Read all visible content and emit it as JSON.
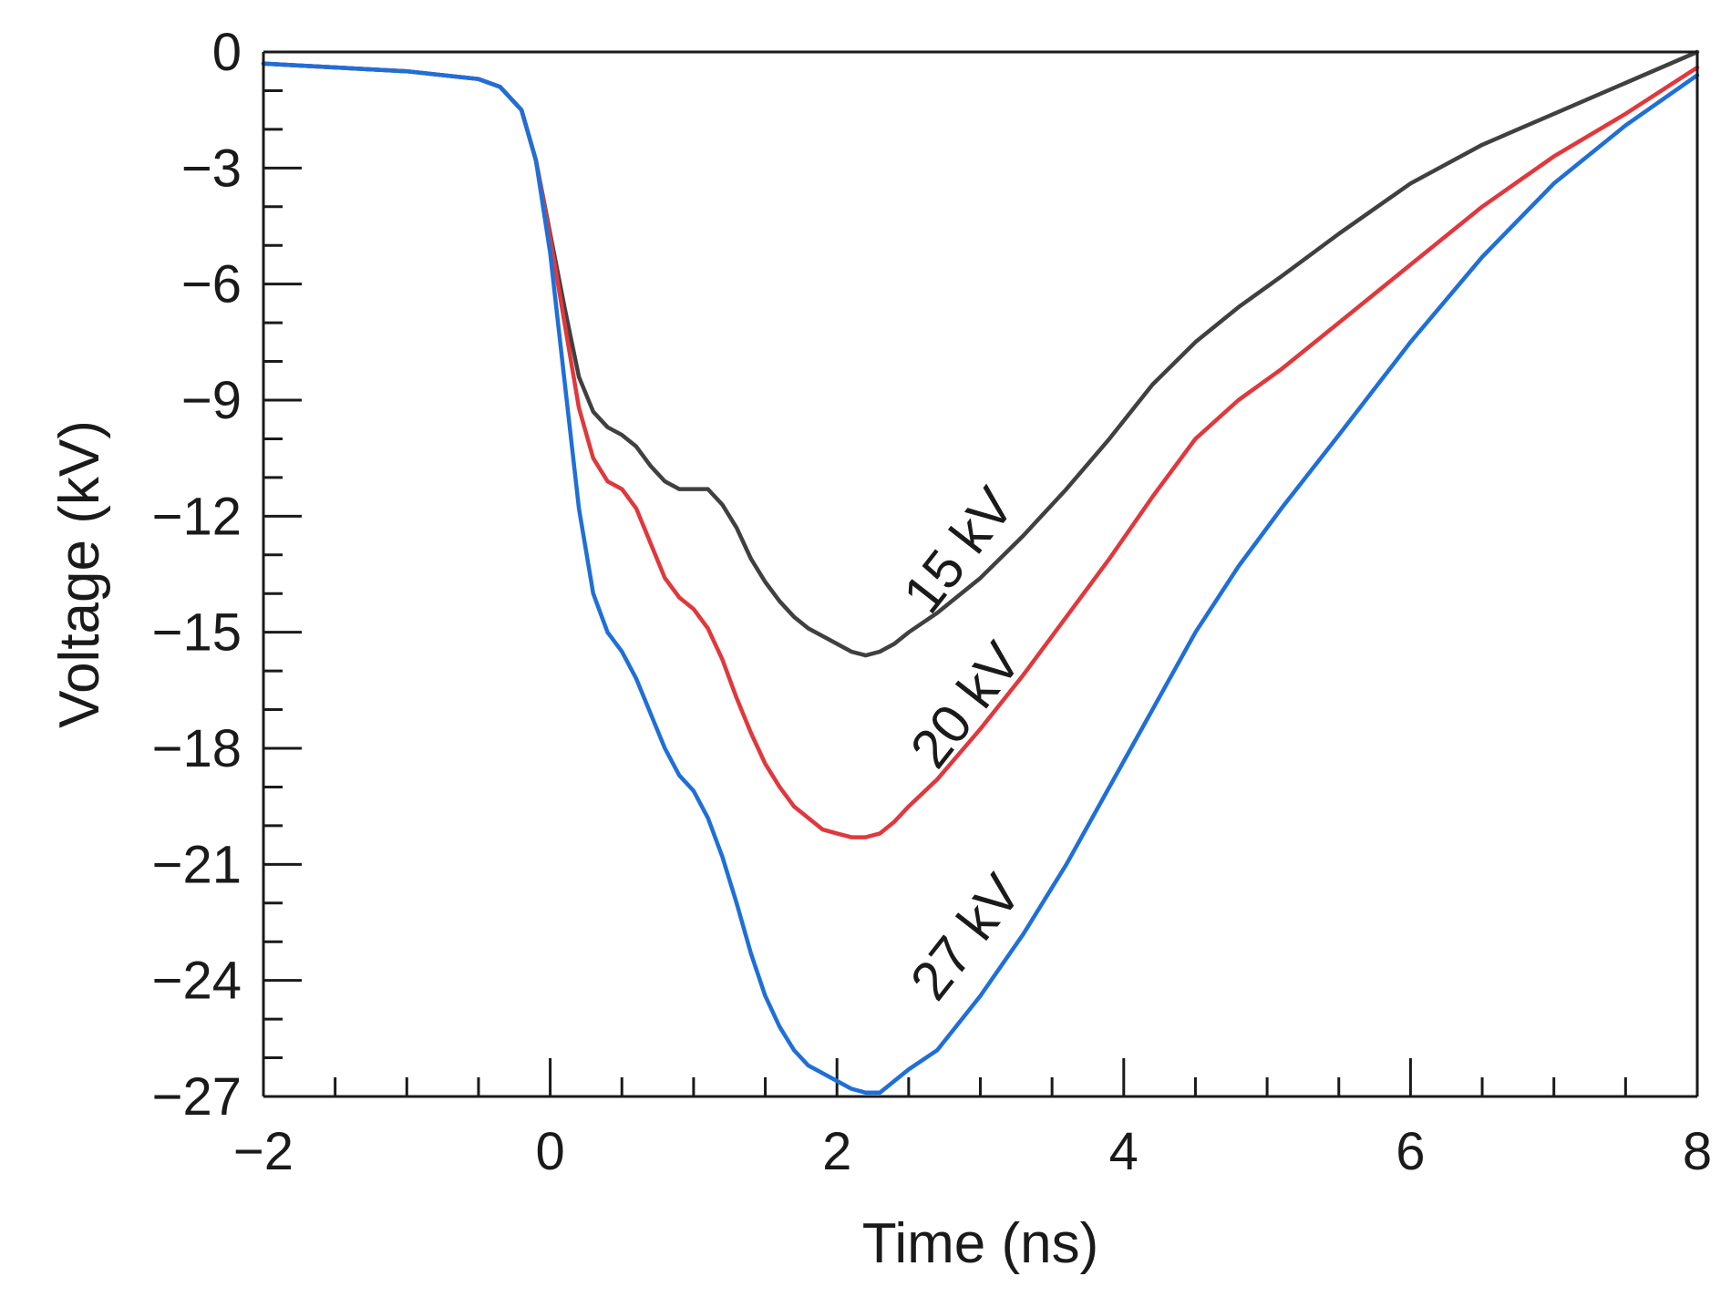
{
  "chart_data": {
    "type": "line",
    "title": "",
    "xlabel": "Time (ns)",
    "ylabel": "Voltage (kV)",
    "xlim": [
      -2,
      8
    ],
    "ylim": [
      -27,
      0
    ],
    "x_major_ticks": [
      -2,
      0,
      2,
      4,
      6,
      8
    ],
    "x_tick_labels": [
      "−2",
      "0",
      "2",
      "4",
      "6",
      "8"
    ],
    "x_minor_step": 0.5,
    "y_major_ticks": [
      0,
      -3,
      -6,
      -9,
      -12,
      -15,
      -18,
      -21,
      -24,
      -27
    ],
    "y_tick_labels": [
      "0",
      "−3",
      "−6",
      "−9",
      "−12",
      "−15",
      "−18",
      "−21",
      "−24",
      "−27"
    ],
    "y_minor_step": 1,
    "grid": false,
    "series": [
      {
        "name": "15 kV",
        "label": "15 kV",
        "color": "#404040",
        "label_anchor": [
          2.65,
          -14.6
        ],
        "x": [
          -2.0,
          -1.5,
          -1.0,
          -0.5,
          -0.35,
          -0.2,
          -0.1,
          0.0,
          0.1,
          0.2,
          0.3,
          0.4,
          0.5,
          0.6,
          0.7,
          0.8,
          0.9,
          1.0,
          1.1,
          1.2,
          1.3,
          1.4,
          1.5,
          1.6,
          1.7,
          1.8,
          1.9,
          2.0,
          2.1,
          2.2,
          2.3,
          2.4,
          2.5,
          2.7,
          3.0,
          3.3,
          3.6,
          3.9,
          4.2,
          4.5,
          4.8,
          5.1,
          5.5,
          6.0,
          6.5,
          7.0,
          7.5,
          8.0
        ],
        "y": [
          -0.3,
          -0.4,
          -0.5,
          -0.7,
          -0.9,
          -1.5,
          -2.8,
          -4.7,
          -6.6,
          -8.4,
          -9.3,
          -9.7,
          -9.9,
          -10.2,
          -10.7,
          -11.1,
          -11.3,
          -11.3,
          -11.3,
          -11.7,
          -12.3,
          -13.1,
          -13.7,
          -14.2,
          -14.6,
          -14.9,
          -15.1,
          -15.3,
          -15.5,
          -15.6,
          -15.5,
          -15.3,
          -15.0,
          -14.5,
          -13.6,
          -12.5,
          -11.3,
          -10.0,
          -8.6,
          -7.5,
          -6.6,
          -5.8,
          -4.7,
          -3.4,
          -2.4,
          -1.6,
          -0.8,
          0.0
        ]
      },
      {
        "name": "20 kV",
        "label": "20 kV",
        "color": "#e0383c",
        "label_anchor": [
          2.7,
          -18.6
        ],
        "x": [
          -2.0,
          -1.5,
          -1.0,
          -0.5,
          -0.35,
          -0.2,
          -0.1,
          0.0,
          0.1,
          0.2,
          0.3,
          0.4,
          0.5,
          0.6,
          0.7,
          0.8,
          0.9,
          1.0,
          1.1,
          1.2,
          1.3,
          1.4,
          1.5,
          1.6,
          1.7,
          1.8,
          1.9,
          2.0,
          2.1,
          2.2,
          2.3,
          2.4,
          2.5,
          2.7,
          3.0,
          3.3,
          3.6,
          3.9,
          4.2,
          4.5,
          4.8,
          5.1,
          5.5,
          6.0,
          6.5,
          7.0,
          7.5,
          8.0
        ],
        "y": [
          -0.3,
          -0.4,
          -0.5,
          -0.7,
          -0.9,
          -1.5,
          -2.8,
          -4.8,
          -7.0,
          -9.2,
          -10.5,
          -11.1,
          -11.3,
          -11.8,
          -12.7,
          -13.6,
          -14.1,
          -14.4,
          -14.9,
          -15.7,
          -16.7,
          -17.6,
          -18.4,
          -19.0,
          -19.5,
          -19.8,
          -20.1,
          -20.2,
          -20.3,
          -20.3,
          -20.2,
          -19.9,
          -19.5,
          -18.8,
          -17.5,
          -16.1,
          -14.6,
          -13.1,
          -11.5,
          -10.0,
          -9.0,
          -8.2,
          -7.0,
          -5.5,
          -4.0,
          -2.7,
          -1.6,
          -0.4
        ]
      },
      {
        "name": "27 kV",
        "label": "27 kV",
        "color": "#1f6fd9",
        "label_anchor": [
          2.7,
          -24.6
        ],
        "x": [
          -2.0,
          -1.5,
          -1.0,
          -0.5,
          -0.35,
          -0.2,
          -0.1,
          0.0,
          0.1,
          0.2,
          0.3,
          0.4,
          0.5,
          0.6,
          0.7,
          0.8,
          0.9,
          1.0,
          1.1,
          1.2,
          1.3,
          1.4,
          1.5,
          1.6,
          1.7,
          1.8,
          1.9,
          2.0,
          2.1,
          2.2,
          2.3,
          2.4,
          2.5,
          2.7,
          3.0,
          3.3,
          3.6,
          3.9,
          4.2,
          4.5,
          4.8,
          5.1,
          5.5,
          6.0,
          6.5,
          7.0,
          7.5,
          8.0
        ],
        "y": [
          -0.3,
          -0.4,
          -0.5,
          -0.7,
          -0.9,
          -1.5,
          -2.8,
          -5.2,
          -8.5,
          -11.8,
          -14.0,
          -15.0,
          -15.5,
          -16.2,
          -17.1,
          -18.0,
          -18.7,
          -19.1,
          -19.8,
          -20.8,
          -22.0,
          -23.3,
          -24.4,
          -25.2,
          -25.8,
          -26.2,
          -26.4,
          -26.6,
          -26.8,
          -26.9,
          -26.9,
          -26.6,
          -26.3,
          -25.8,
          -24.4,
          -22.8,
          -21.0,
          -19.0,
          -17.0,
          -15.0,
          -13.3,
          -11.8,
          -9.9,
          -7.5,
          -5.3,
          -3.4,
          -1.9,
          -0.6
        ]
      }
    ]
  }
}
